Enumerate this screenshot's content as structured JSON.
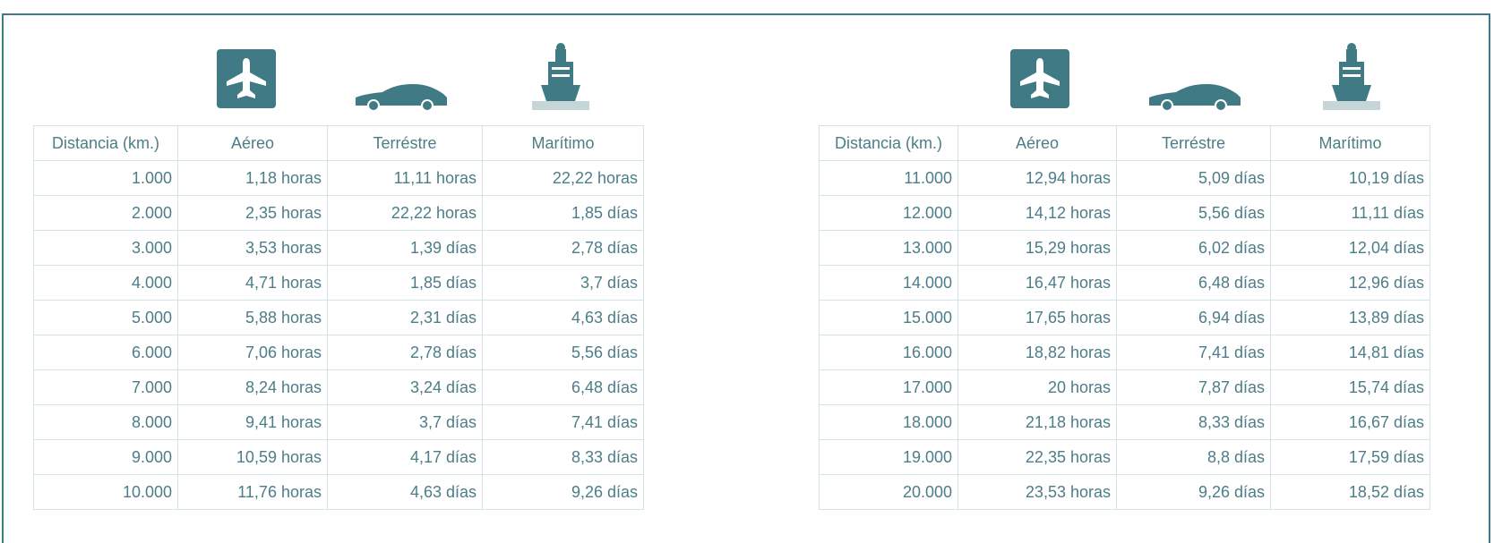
{
  "tables": [
    {
      "headers": [
        "Distancia (km.)",
        "Aéreo",
        "Terréstre",
        "Marítimo"
      ],
      "rows": [
        [
          "1.000",
          "1,18 horas",
          "11,11 horas",
          "22,22 horas"
        ],
        [
          "2.000",
          "2,35 horas",
          "22,22 horas",
          "1,85 días"
        ],
        [
          "3.000",
          "3,53 horas",
          "1,39 días",
          "2,78 días"
        ],
        [
          "4.000",
          "4,71 horas",
          "1,85 días",
          "3,7 días"
        ],
        [
          "5.000",
          "5,88 horas",
          "2,31 días",
          "4,63 días"
        ],
        [
          "6.000",
          "7,06 horas",
          "2,78 días",
          "5,56 días"
        ],
        [
          "7.000",
          "8,24 horas",
          "3,24 días",
          "6,48 días"
        ],
        [
          "8.000",
          "9,41 horas",
          "3,7 días",
          "7,41 días"
        ],
        [
          "9.000",
          "10,59 horas",
          "4,17 días",
          "8,33 días"
        ],
        [
          "10.000",
          "11,76 horas",
          "4,63 días",
          "9,26 días"
        ]
      ]
    },
    {
      "headers": [
        "Distancia (km.)",
        "Aéreo",
        "Terréstre",
        "Marítimo"
      ],
      "rows": [
        [
          "11.000",
          "12,94 horas",
          "5,09 días",
          "10,19 días"
        ],
        [
          "12.000",
          "14,12 horas",
          "5,56 días",
          "11,11 días"
        ],
        [
          "13.000",
          "15,29 horas",
          "6,02 días",
          "12,04 días"
        ],
        [
          "14.000",
          "16,47 horas",
          "6,48 días",
          "12,96 días"
        ],
        [
          "15.000",
          "17,65 horas",
          "6,94 días",
          "13,89 días"
        ],
        [
          "16.000",
          "18,82 horas",
          "7,41 días",
          "14,81 días"
        ],
        [
          "17.000",
          "20 horas",
          "7,87 días",
          "15,74 días"
        ],
        [
          "18.000",
          "21,18 horas",
          "8,33 días",
          "16,67 días"
        ],
        [
          "19.000",
          "22,35 horas",
          "8,8 días",
          "17,59 días"
        ],
        [
          "20.000",
          "23,53 horas",
          "9,26 días",
          "18,52 días"
        ]
      ]
    }
  ]
}
